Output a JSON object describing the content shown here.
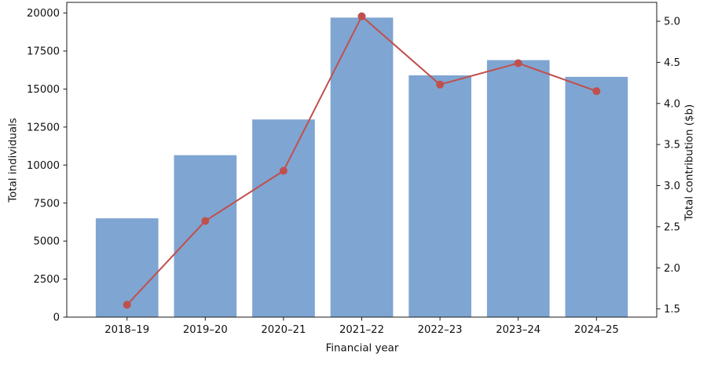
{
  "chart_data": {
    "type": "bar+line",
    "categories": [
      "2018–19",
      "2019–20",
      "2020–21",
      "2021–22",
      "2022–23",
      "2023–24",
      "2024–25"
    ],
    "series": [
      {
        "name": "Total individuals",
        "type": "bar",
        "axis": "left",
        "color": "#7fa5d2",
        "values": [
          6500,
          10650,
          13000,
          19700,
          15900,
          16900,
          15800
        ]
      },
      {
        "name": "Total contribution ($b)",
        "type": "line",
        "axis": "right",
        "color": "#c0504d",
        "marker": "circle",
        "values": [
          1.55,
          2.57,
          3.18,
          5.06,
          4.23,
          4.49,
          4.15
        ]
      }
    ],
    "title": "",
    "xlabel": "Financial year",
    "ylabel_left": "Total individuals",
    "ylabel_right": "Total contribution ($b)",
    "ylim_left": [
      0,
      20700
    ],
    "ylim_right": [
      1.4,
      5.23
    ],
    "yticks_left": [
      0,
      2500,
      5000,
      7500,
      10000,
      12500,
      15000,
      17500,
      20000
    ],
    "yticks_right": [
      1.5,
      2.0,
      2.5,
      3.0,
      3.5,
      4.0,
      4.5,
      5.0
    ],
    "grid": false,
    "legend": "none",
    "background": "#ffffff",
    "spine_color": "#1a1a1a",
    "tick_label_color": "#111111",
    "bar_width_fraction": 0.8
  }
}
